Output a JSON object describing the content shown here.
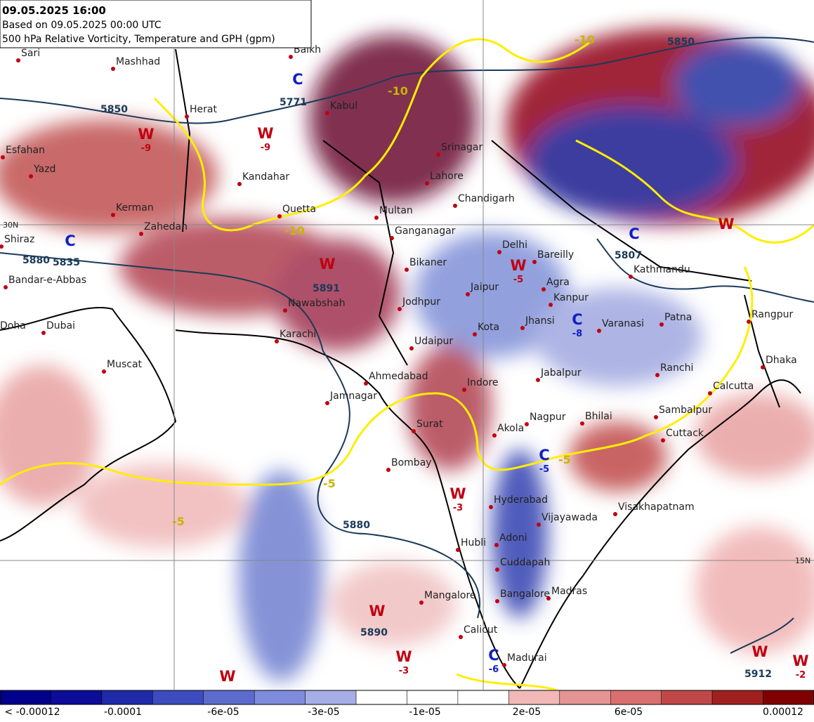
{
  "header": {
    "line1": "09.05.2025 16:00",
    "line2": "Based on 09.05.2025 00:00 UTC",
    "line3": "500 hPa Relative Vorticity, Temperature and GPH (gpm)"
  },
  "places": [
    "Sari",
    "Mashhad",
    "Balkh",
    "Herat",
    "Kabul",
    "Esfahan",
    "Yazd",
    "Kandahar",
    "Kerman",
    "Zahedan",
    "Quetta",
    "Shiraz",
    "Bandar-e-Abbas",
    "Srinagar",
    "Lahore",
    "Chandigarh",
    "Multan",
    "Ganganagar",
    "Delhi",
    "Bareilly",
    "Bikaner",
    "Kathmandu",
    "Agra",
    "Jaipur",
    "Jodhpur",
    "Kanpur",
    "Nawabshah",
    "Jhansi",
    "Varanasi",
    "Patna",
    "Rangpur",
    "Doha",
    "Dubai",
    "Karachi",
    "Kota",
    "Udaipur",
    "Dhaka",
    "Muscat",
    "Ranchi",
    "Ahmedabad",
    "Indore",
    "Jabalpur",
    "Calcutta",
    "Jamnagar",
    "Sambalpur",
    "Nagpur",
    "Bhilai",
    "Surat",
    "Akola",
    "Cuttack",
    "Bombay",
    "Hyderabad",
    "Visakhapatnam",
    "Vijayawada",
    "Hubli",
    "Adoni",
    "Cuddapah",
    "Madras",
    "Bangalore",
    "Mangalore",
    "Calicut",
    "Madurai"
  ],
  "markers": [
    {
      "letter": "W",
      "label": "-9"
    },
    {
      "letter": "W",
      "label": "-9"
    },
    {
      "letter": "C"
    },
    {
      "letter": "W"
    },
    {
      "letter": "W",
      "label": "-5"
    },
    {
      "letter": "C",
      "label": "-8"
    },
    {
      "letter": "C"
    },
    {
      "letter": "W"
    },
    {
      "letter": "C"
    },
    {
      "letter": "C",
      "label": "-5"
    },
    {
      "letter": "W",
      "label": "-3"
    },
    {
      "letter": "W"
    },
    {
      "letter": "W",
      "label": "-3"
    },
    {
      "letter": "C",
      "label": "-6"
    },
    {
      "letter": "W"
    },
    {
      "letter": "W"
    },
    {
      "letter": "W",
      "label": "-2"
    }
  ],
  "contour_labels": [
    "5850",
    "5771",
    "5850",
    "5880",
    "5835",
    "5807",
    "5891",
    "5880",
    "5890",
    "5912"
  ],
  "temp_labels": [
    "-10",
    "-10",
    "-10",
    "-5",
    "-5",
    "-5"
  ],
  "lat_labels": [
    "30N",
    "15N"
  ],
  "colorbar": {
    "colors": [
      "#00008b",
      "#0c0c98",
      "#1e2aa8",
      "#3c4cbe",
      "#5c6ccc",
      "#7e8cdc",
      "#a6aee8",
      "#ffffff",
      "#ffffff",
      "#ffffff",
      "#f2b8b8",
      "#e49494",
      "#d87070",
      "#c04848",
      "#a02020",
      "#800000"
    ],
    "labels": [
      "< -0.00012",
      "-0.0001",
      "-6e-05",
      "-3e-05",
      "-1e-05",
      "2e-05",
      "6e-05",
      "0.00012"
    ]
  }
}
